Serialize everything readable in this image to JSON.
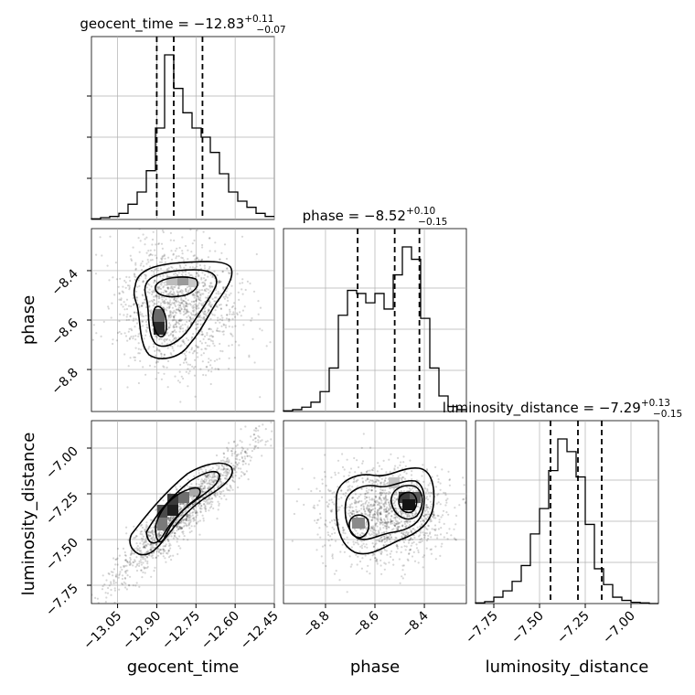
{
  "chart_data": {
    "type": "corner",
    "parameters": [
      {
        "name": "geocent_time",
        "label": "geocent_time",
        "range": [
          -13.15,
          -12.45
        ],
        "ticks": [
          "−13.05",
          "−12.90",
          "−12.75",
          "−12.60",
          "−12.45"
        ],
        "tick_values": [
          -13.05,
          -12.9,
          -12.75,
          -12.6,
          -12.45
        ],
        "title": "geocent_time = −12.83",
        "title_plus": "+0.11",
        "title_minus": "−0.07",
        "quantiles": [
          -12.9,
          -12.835,
          -12.725
        ],
        "hist_edges_start": -13.15,
        "hist_bin_width": 0.035,
        "hist_counts": [
          1,
          3,
          5,
          10,
          25,
          45,
          80,
          150,
          270,
          215,
          175,
          150,
          135,
          110,
          75,
          45,
          30,
          20,
          10,
          5
        ]
      },
      {
        "name": "phase",
        "label": "phase",
        "range": [
          -8.97,
          -8.23
        ],
        "ticks": [
          "−8.8",
          "−8.6",
          "−8.4"
        ],
        "tick_values": [
          -8.8,
          -8.6,
          -8.4
        ],
        "title": "phase = −8.52",
        "title_plus": "+0.10",
        "title_minus": "−0.15",
        "quantiles": [
          -8.67,
          -8.52,
          -8.42
        ],
        "hist_edges_start": -8.97,
        "hist_bin_width": 0.037,
        "hist_counts": [
          1,
          3,
          7,
          15,
          32,
          70,
          155,
          195,
          190,
          175,
          190,
          165,
          220,
          265,
          245,
          150,
          70,
          25,
          8,
          3
        ]
      },
      {
        "name": "luminosity_distance",
        "label": "luminosity_distance",
        "range": [
          -7.85,
          -6.85
        ],
        "ticks": [
          "−7.75",
          "−7.50",
          "−7.25",
          "−7.00"
        ],
        "tick_values": [
          -7.75,
          -7.5,
          -7.25,
          -7.0
        ],
        "title": "luminosity_distance = −7.29",
        "title_plus": "+0.13",
        "title_minus": "−0.15",
        "quantiles": [
          -7.44,
          -7.29,
          -7.16
        ],
        "hist_edges_start": -7.85,
        "hist_bin_width": 0.05,
        "hist_counts": [
          1,
          3,
          10,
          20,
          35,
          60,
          110,
          150,
          210,
          260,
          240,
          200,
          125,
          55,
          30,
          10,
          5,
          2,
          1,
          0
        ]
      }
    ],
    "pairs": [
      {
        "x": "geocent_time",
        "y": "phase"
      },
      {
        "x": "geocent_time",
        "y": "luminosity_distance"
      },
      {
        "x": "phase",
        "y": "luminosity_distance"
      }
    ],
    "grid": true
  }
}
